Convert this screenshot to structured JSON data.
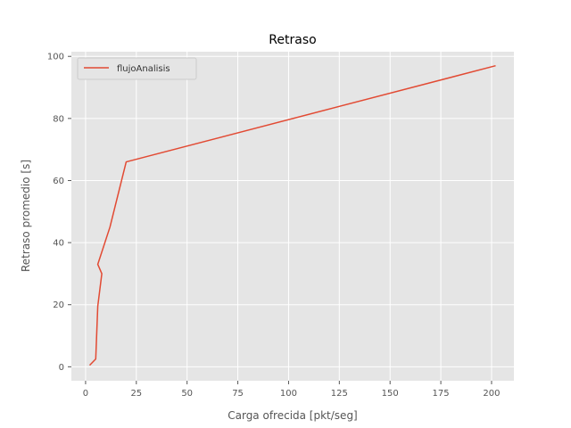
{
  "chart_data": {
    "type": "line",
    "title": "Retraso",
    "xlabel": "Carga ofrecida [pkt/seg]",
    "ylabel": "Retraso promedio [s]",
    "xlim": [
      -7,
      211
    ],
    "ylim": [
      -4.5,
      101.5
    ],
    "xticks": [
      0,
      25,
      50,
      75,
      100,
      125,
      150,
      175,
      200
    ],
    "yticks": [
      0,
      20,
      40,
      60,
      80,
      100
    ],
    "grid": true,
    "legend_position": "top-left",
    "background": "#e5e5e5",
    "series": [
      {
        "name": "flujoAnalisis",
        "color": "#e24a33",
        "x": [
          2,
          5,
          6,
          8,
          6,
          12,
          20,
          202
        ],
        "y": [
          0.5,
          2.5,
          19.5,
          30,
          33,
          45,
          66,
          97
        ]
      }
    ]
  }
}
